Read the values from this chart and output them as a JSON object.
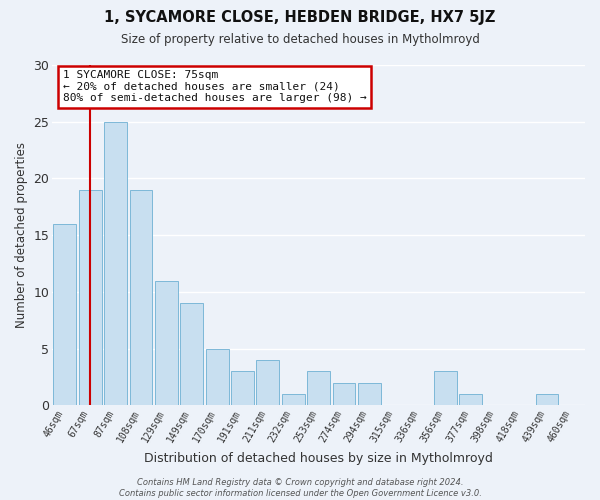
{
  "title": "1, SYCAMORE CLOSE, HEBDEN BRIDGE, HX7 5JZ",
  "subtitle": "Size of property relative to detached houses in Mytholmroyd",
  "xlabel": "Distribution of detached houses by size in Mytholmroyd",
  "ylabel": "Number of detached properties",
  "bar_labels": [
    "46sqm",
    "67sqm",
    "87sqm",
    "108sqm",
    "129sqm",
    "149sqm",
    "170sqm",
    "191sqm",
    "211sqm",
    "232sqm",
    "253sqm",
    "274sqm",
    "294sqm",
    "315sqm",
    "336sqm",
    "356sqm",
    "377sqm",
    "398sqm",
    "418sqm",
    "439sqm",
    "460sqm"
  ],
  "bar_values": [
    16,
    19,
    25,
    19,
    11,
    9,
    5,
    3,
    4,
    1,
    3,
    2,
    2,
    0,
    0,
    3,
    1,
    0,
    0,
    1,
    0
  ],
  "bar_color": "#c8dff0",
  "bar_edge_color": "#7db8d8",
  "vline_x": 1,
  "vline_color": "#cc0000",
  "annotation_text": "1 SYCAMORE CLOSE: 75sqm\n← 20% of detached houses are smaller (24)\n80% of semi-detached houses are larger (98) →",
  "annotation_box_color": "#ffffff",
  "annotation_box_edge": "#cc0000",
  "ylim": [
    0,
    30
  ],
  "yticks": [
    0,
    5,
    10,
    15,
    20,
    25,
    30
  ],
  "footer": "Contains HM Land Registry data © Crown copyright and database right 2024.\nContains public sector information licensed under the Open Government Licence v3.0.",
  "bg_color": "#edf2f9",
  "grid_color": "#ffffff"
}
